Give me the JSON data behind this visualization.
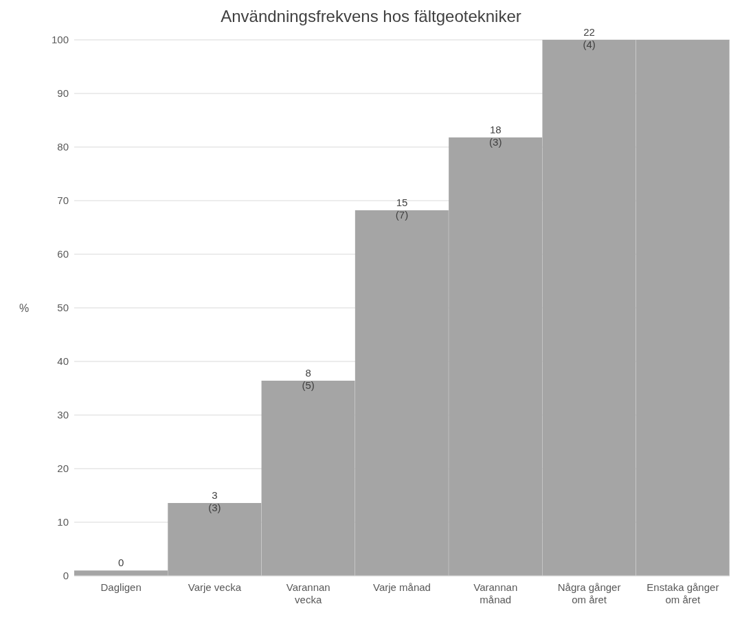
{
  "chart_data": {
    "type": "bar",
    "title": "Användningsfrekvens hos fältgeotekniker",
    "ylabel": "%",
    "categories": [
      "Dagligen",
      "Varje vecka",
      "Varannan vecka",
      "Varje månad",
      "Varannan månad",
      "Några gånger om året",
      "Enstaka gånger om året"
    ],
    "values": [
      1,
      13.6,
      36.4,
      68.2,
      81.8,
      100,
      100
    ],
    "annotations": [
      {
        "text": "0",
        "x": "Dagligen",
        "y": 1
      },
      {
        "text": "3\n(3)",
        "x": "Varje vecka",
        "y": 13.6
      },
      {
        "text": "8\n(5)",
        "x": "Varannan vecka",
        "y": 36.4
      },
      {
        "text": "15\n(7)",
        "x": "Varje månad",
        "y": 68.2
      },
      {
        "text": "18\n(3)",
        "x": "Varannan månad",
        "y": 81.8
      },
      {
        "text": "22\n(4)",
        "x": "Några gånger om året",
        "y": 100
      }
    ],
    "color": "#a5a5a5",
    "ylim": [
      0,
      100
    ],
    "yticks": [
      0,
      10,
      20,
      30,
      40,
      50,
      60,
      70,
      80,
      90,
      100
    ],
    "grid": "y"
  }
}
